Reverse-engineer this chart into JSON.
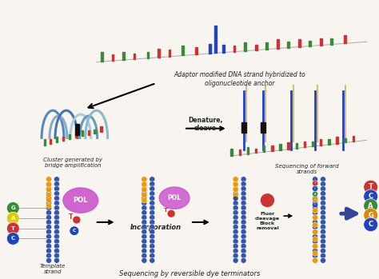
{
  "bg_color": "#f8f5f0",
  "top_label": "Adaptor modified DNA strand hybridized to\noligonucleotide anchor",
  "mid_left_label": "Cluster generated by\nbridge amplification",
  "mid_center_label": "Denature,\ncleave",
  "mid_right_label": "Sequencing of forward\nstrands",
  "bottom_label": "Sequencing by reversible dye terminators",
  "template_label": "Template\nstrand",
  "incorp_label": "Incorporation",
  "fluor_label": "Fluor\ncleavage\nBlock\nremoval",
  "pol_label": "POL",
  "green": "#3a8a3a",
  "red": "#cc3333",
  "blue": "#2244bb",
  "orange": "#dd8800",
  "purple": "#bb44bb",
  "dark_blue": "#334499",
  "lt_blue": "#88aacc",
  "bead_blue": "#3355aa",
  "bead_orange": "#ee9900",
  "black": "#111111",
  "gray": "#aaaaaa"
}
